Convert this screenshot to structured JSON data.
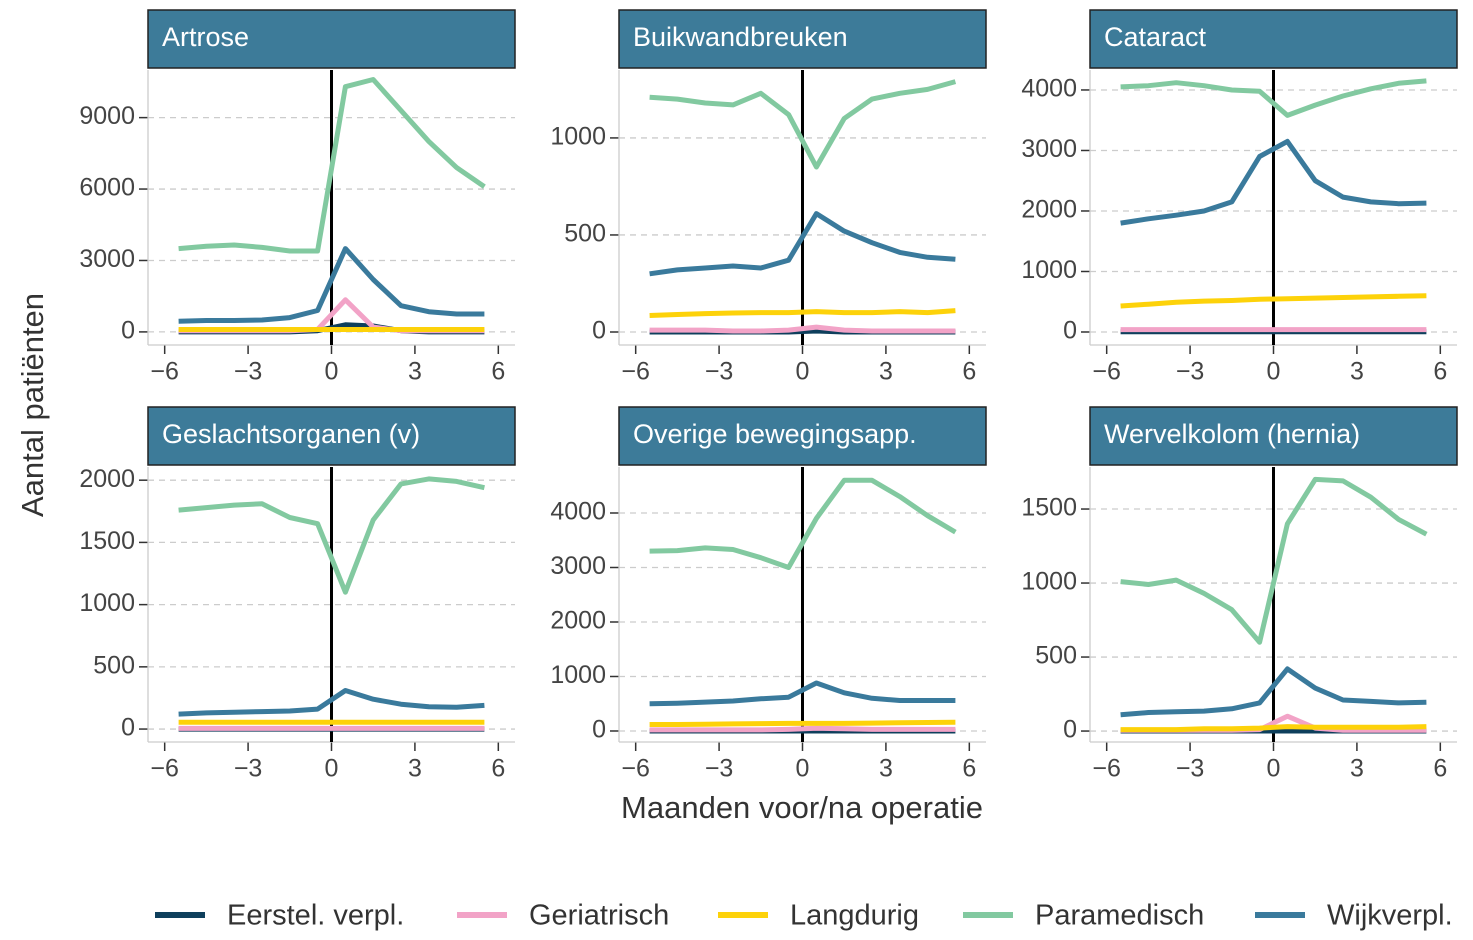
{
  "ylabel": "Aantal patiënten",
  "xlabel": "Maanden voor/na operatie",
  "chart_data": [
    {
      "type": "line",
      "title": "Artrose",
      "x": [
        -5.5,
        -4.5,
        -3.5,
        -2.5,
        -1.5,
        -0.5,
        0.5,
        1.5,
        2.5,
        3.5,
        4.5,
        5.5
      ],
      "xlim": [
        -6.6,
        6.6
      ],
      "xticks": [
        {
          "value": -6,
          "label": "−6"
        },
        {
          "value": -3,
          "label": "−3"
        },
        0,
        3,
        6
      ],
      "ylim": [
        -550,
        11000
      ],
      "yticks": [
        0,
        3000,
        6000,
        9000
      ],
      "grid": true,
      "vline": 0,
      "series": [
        {
          "name": "Eerstel. verpl.",
          "color": "#0e3f5c",
          "values": [
            0,
            0,
            0,
            0,
            0,
            50,
            300,
            250,
            50,
            0,
            0,
            0
          ]
        },
        {
          "name": "Geriatrisch",
          "color": "#f2a3c7",
          "values": [
            50,
            50,
            50,
            50,
            50,
            100,
            1350,
            200,
            50,
            50,
            50,
            50
          ]
        },
        {
          "name": "Langdurig",
          "color": "#fdd20a",
          "values": [
            100,
            100,
            100,
            100,
            100,
            100,
            100,
            100,
            100,
            100,
            100,
            100
          ]
        },
        {
          "name": "Paramedisch",
          "color": "#82c9a0",
          "values": [
            3500,
            3600,
            3650,
            3550,
            3400,
            3400,
            10300,
            10600,
            9300,
            8000,
            6900,
            6100
          ]
        },
        {
          "name": "Wijkverpl.",
          "color": "#3a7a9c",
          "values": [
            450,
            480,
            480,
            500,
            600,
            900,
            3500,
            2200,
            1100,
            850,
            750,
            750
          ]
        }
      ]
    },
    {
      "type": "line",
      "title": "Buikwandbreuken",
      "x": [
        -5.5,
        -4.5,
        -3.5,
        -2.5,
        -1.5,
        -0.5,
        0.5,
        1.5,
        2.5,
        3.5,
        4.5,
        5.5
      ],
      "xlim": [
        -6.6,
        6.6
      ],
      "xticks": [
        {
          "value": -6,
          "label": "−6"
        },
        {
          "value": -3,
          "label": "−3"
        },
        0,
        3,
        6
      ],
      "ylim": [
        -67,
        1350
      ],
      "yticks": [
        0,
        500,
        1000
      ],
      "grid": true,
      "vline": 0,
      "series": [
        {
          "name": "Eerstel. verpl.",
          "color": "#0e3f5c",
          "values": [
            0,
            0,
            0,
            0,
            0,
            0,
            5,
            0,
            0,
            0,
            0,
            0
          ]
        },
        {
          "name": "Geriatrisch",
          "color": "#f2a3c7",
          "values": [
            10,
            10,
            10,
            5,
            5,
            10,
            25,
            10,
            5,
            5,
            5,
            5
          ]
        },
        {
          "name": "Langdurig",
          "color": "#fdd20a",
          "values": [
            85,
            90,
            95,
            98,
            100,
            100,
            105,
            100,
            100,
            105,
            100,
            110
          ]
        },
        {
          "name": "Paramedisch",
          "color": "#82c9a0",
          "values": [
            1210,
            1200,
            1180,
            1170,
            1230,
            1120,
            850,
            1100,
            1200,
            1230,
            1250,
            1290
          ]
        },
        {
          "name": "Wijkverpl.",
          "color": "#3a7a9c",
          "values": [
            300,
            320,
            330,
            340,
            330,
            370,
            610,
            520,
            460,
            410,
            385,
            375
          ]
        }
      ]
    },
    {
      "type": "line",
      "title": "Cataract",
      "x": [
        -5.5,
        -4.5,
        -3.5,
        -2.5,
        -1.5,
        -0.5,
        0.5,
        1.5,
        2.5,
        3.5,
        4.5,
        5.5
      ],
      "xlim": [
        -6.6,
        6.6
      ],
      "xticks": [
        {
          "value": -6,
          "label": "−6"
        },
        {
          "value": -3,
          "label": "−3"
        },
        0,
        3,
        6
      ],
      "ylim": [
        -215,
        4330
      ],
      "yticks": [
        0,
        1000,
        2000,
        3000,
        4000
      ],
      "grid": true,
      "vline": 0,
      "series": [
        {
          "name": "Eerstel. verpl.",
          "color": "#0e3f5c",
          "values": [
            5,
            5,
            5,
            5,
            5,
            5,
            5,
            5,
            5,
            5,
            5,
            5
          ]
        },
        {
          "name": "Geriatrisch",
          "color": "#f2a3c7",
          "values": [
            40,
            40,
            40,
            40,
            40,
            40,
            40,
            40,
            40,
            40,
            40,
            40
          ]
        },
        {
          "name": "Langdurig",
          "color": "#fdd20a",
          "values": [
            430,
            460,
            490,
            510,
            520,
            540,
            550,
            560,
            570,
            580,
            590,
            600
          ]
        },
        {
          "name": "Paramedisch",
          "color": "#82c9a0",
          "values": [
            4050,
            4070,
            4120,
            4070,
            4000,
            3980,
            3580,
            3750,
            3900,
            4020,
            4110,
            4150
          ]
        },
        {
          "name": "Wijkverpl.",
          "color": "#3a7a9c",
          "values": [
            1800,
            1870,
            1930,
            2000,
            2150,
            2900,
            3150,
            2500,
            2230,
            2150,
            2120,
            2130
          ]
        }
      ]
    },
    {
      "type": "line",
      "title": "Geslachtsorganen (v)",
      "x": [
        -5.5,
        -4.5,
        -3.5,
        -2.5,
        -1.5,
        -0.5,
        0.5,
        1.5,
        2.5,
        3.5,
        4.5,
        5.5
      ],
      "xlim": [
        -6.6,
        6.6
      ],
      "xticks": [
        {
          "value": -6,
          "label": "−6"
        },
        {
          "value": -3,
          "label": "−3"
        },
        0,
        3,
        6
      ],
      "ylim": [
        -104,
        2106
      ],
      "yticks": [
        0,
        500,
        1000,
        1500,
        2000
      ],
      "grid": true,
      "vline": 0,
      "series": [
        {
          "name": "Eerstel. verpl.",
          "color": "#0e3f5c",
          "values": [
            0,
            0,
            0,
            0,
            0,
            0,
            0,
            0,
            0,
            0,
            0,
            0
          ]
        },
        {
          "name": "Geriatrisch",
          "color": "#f2a3c7",
          "values": [
            5,
            5,
            5,
            5,
            5,
            5,
            5,
            5,
            5,
            5,
            5,
            5
          ]
        },
        {
          "name": "Langdurig",
          "color": "#fdd20a",
          "values": [
            55,
            55,
            55,
            55,
            55,
            55,
            55,
            55,
            55,
            55,
            55,
            55
          ]
        },
        {
          "name": "Paramedisch",
          "color": "#82c9a0",
          "values": [
            1760,
            1780,
            1800,
            1810,
            1700,
            1650,
            1100,
            1680,
            1970,
            2010,
            1990,
            1940
          ]
        },
        {
          "name": "Wijkverpl.",
          "color": "#3a7a9c",
          "values": [
            120,
            130,
            135,
            140,
            145,
            160,
            310,
            240,
            200,
            180,
            175,
            190
          ]
        }
      ]
    },
    {
      "type": "line",
      "title": "Overige bewegingsapp.",
      "x": [
        -5.5,
        -4.5,
        -3.5,
        -2.5,
        -1.5,
        -0.5,
        0.5,
        1.5,
        2.5,
        3.5,
        4.5,
        5.5
      ],
      "xlim": [
        -6.6,
        6.6
      ],
      "xticks": [
        {
          "value": -6,
          "label": "−6"
        },
        {
          "value": -3,
          "label": "−3"
        },
        0,
        3,
        6
      ],
      "ylim": [
        -202,
        4844
      ],
      "yticks": [
        0,
        1000,
        2000,
        3000,
        4000
      ],
      "grid": true,
      "vline": 0,
      "series": [
        {
          "name": "Eerstel. verpl.",
          "color": "#0e3f5c",
          "values": [
            0,
            0,
            0,
            0,
            0,
            0,
            0,
            0,
            0,
            0,
            0,
            0
          ]
        },
        {
          "name": "Geriatrisch",
          "color": "#f2a3c7",
          "values": [
            20,
            20,
            20,
            20,
            20,
            30,
            50,
            40,
            30,
            30,
            30,
            30
          ]
        },
        {
          "name": "Langdurig",
          "color": "#fdd20a",
          "values": [
            120,
            120,
            125,
            130,
            135,
            140,
            140,
            140,
            145,
            150,
            155,
            160
          ]
        },
        {
          "name": "Paramedisch",
          "color": "#82c9a0",
          "values": [
            3300,
            3310,
            3360,
            3330,
            3180,
            3000,
            3900,
            4600,
            4600,
            4300,
            3950,
            3650
          ]
        },
        {
          "name": "Wijkverpl.",
          "color": "#3a7a9c",
          "values": [
            500,
            510,
            530,
            550,
            590,
            620,
            880,
            700,
            600,
            560,
            560,
            560
          ]
        }
      ]
    },
    {
      "type": "line",
      "title": "Wervelkolom (hernia)",
      "x": [
        -5.5,
        -4.5,
        -3.5,
        -2.5,
        -1.5,
        -0.5,
        0.5,
        1.5,
        2.5,
        3.5,
        4.5,
        5.5
      ],
      "xlim": [
        -6.6,
        6.6
      ],
      "xticks": [
        {
          "value": -6,
          "label": "−6"
        },
        {
          "value": -3,
          "label": "−3"
        },
        0,
        3,
        6
      ],
      "ylim": [
        -74,
        1784
      ],
      "yticks": [
        0,
        500,
        1000,
        1500
      ],
      "grid": true,
      "vline": 0,
      "series": [
        {
          "name": "Eerstel. verpl.",
          "color": "#0e3f5c",
          "values": [
            0,
            0,
            0,
            0,
            0,
            0,
            0,
            0,
            0,
            0,
            0,
            0
          ]
        },
        {
          "name": "Geriatrisch",
          "color": "#f2a3c7",
          "values": [
            5,
            5,
            5,
            5,
            5,
            10,
            100,
            20,
            5,
            5,
            5,
            5
          ]
        },
        {
          "name": "Langdurig",
          "color": "#fdd20a",
          "values": [
            10,
            10,
            10,
            15,
            15,
            20,
            30,
            25,
            25,
            25,
            25,
            30
          ]
        },
        {
          "name": "Paramedisch",
          "color": "#82c9a0",
          "values": [
            1010,
            990,
            1020,
            930,
            820,
            600,
            1400,
            1700,
            1690,
            1580,
            1430,
            1330
          ]
        },
        {
          "name": "Wijkverpl.",
          "color": "#3a7a9c",
          "values": [
            110,
            125,
            130,
            135,
            150,
            190,
            420,
            290,
            210,
            200,
            190,
            195
          ]
        }
      ]
    }
  ]
}
